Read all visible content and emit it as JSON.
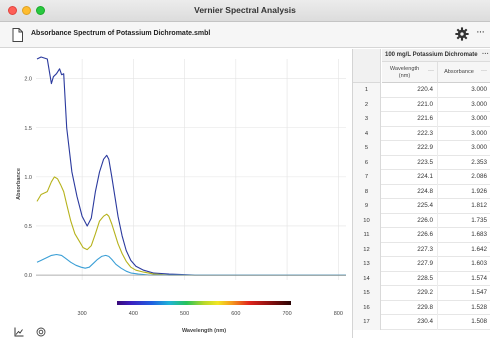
{
  "window": {
    "title": "Vernier Spectral Analysis"
  },
  "toolbar": {
    "doc_title": "Absorbance Spectrum of Potassium Dichromate.smbl",
    "more_label": "···"
  },
  "colors": {
    "series_blue": "#2b3a9e",
    "series_olive": "#b6b21c",
    "series_light": "#3b9fd6"
  },
  "graph": {
    "ylabel": "Absorbance",
    "xlabel": "Wavelength (nm)",
    "x_ticks": [
      "300",
      "400",
      "500",
      "600",
      "700",
      "800"
    ],
    "y_ticks": [
      "2.0",
      "1.5",
      "1.0",
      "0.5",
      "0.0"
    ]
  },
  "chart_data": {
    "type": "line",
    "xlabel": "Wavelength (nm)",
    "ylabel": "Absorbance",
    "xlim": [
      210,
      815
    ],
    "ylim": [
      -0.05,
      2.2
    ],
    "grid": true,
    "series": [
      {
        "color": "#2b3a9e",
        "x": [
          212,
          220,
          232,
          240,
          244,
          250,
          256,
          260,
          264,
          270,
          280,
          290,
          300,
          310,
          318,
          326,
          334,
          342,
          348,
          352,
          358,
          364,
          370,
          378,
          386,
          395,
          405,
          420,
          440,
          470,
          520,
          600,
          700,
          815
        ],
        "y": [
          2.2,
          2.22,
          2.2,
          1.95,
          2.02,
          2.05,
          2.1,
          2.04,
          2.05,
          1.5,
          1.05,
          0.8,
          0.6,
          0.5,
          0.58,
          0.85,
          1.05,
          1.18,
          1.22,
          1.18,
          1.0,
          0.8,
          0.6,
          0.4,
          0.25,
          0.15,
          0.09,
          0.05,
          0.02,
          0.01,
          0.0,
          0.0,
          0.0,
          0.0
        ]
      },
      {
        "color": "#b6b21c",
        "x": [
          212,
          220,
          232,
          240,
          246,
          252,
          258,
          264,
          270,
          278,
          286,
          294,
          302,
          310,
          318,
          326,
          334,
          342,
          348,
          352,
          358,
          364,
          370,
          378,
          386,
          395,
          405,
          420,
          440,
          470,
          520,
          600,
          700,
          815
        ],
        "y": [
          0.75,
          0.82,
          0.85,
          0.95,
          1.0,
          0.98,
          0.92,
          0.85,
          0.72,
          0.55,
          0.42,
          0.35,
          0.28,
          0.26,
          0.3,
          0.42,
          0.55,
          0.6,
          0.62,
          0.6,
          0.52,
          0.42,
          0.32,
          0.22,
          0.14,
          0.08,
          0.05,
          0.03,
          0.01,
          0.0,
          0.0,
          0.0,
          0.0,
          0.0
        ]
      },
      {
        "color": "#3b9fd6",
        "x": [
          212,
          220,
          232,
          240,
          250,
          260,
          268,
          278,
          288,
          298,
          306,
          314,
          322,
          330,
          338,
          346,
          352,
          358,
          366,
          376,
          386,
          396,
          410,
          430,
          460,
          520,
          600,
          700,
          815
        ],
        "y": [
          0.13,
          0.15,
          0.18,
          0.2,
          0.21,
          0.2,
          0.17,
          0.13,
          0.1,
          0.08,
          0.07,
          0.08,
          0.12,
          0.16,
          0.19,
          0.2,
          0.19,
          0.16,
          0.11,
          0.07,
          0.04,
          0.02,
          0.01,
          0.0,
          0.0,
          0.0,
          0.0,
          0.0,
          0.0
        ]
      }
    ]
  },
  "table": {
    "dataset_name": "100 mg/L Potassium Dichromate",
    "dataset_menu": "···",
    "col_wavelength": "Wavelength (nm)",
    "col_absorbance": "Absorbance",
    "col_menu": "···",
    "rows": [
      {
        "n": "1",
        "wl": "220.4",
        "ab": "3.000"
      },
      {
        "n": "2",
        "wl": "221.0",
        "ab": "3.000"
      },
      {
        "n": "3",
        "wl": "221.6",
        "ab": "3.000"
      },
      {
        "n": "4",
        "wl": "222.3",
        "ab": "3.000"
      },
      {
        "n": "5",
        "wl": "222.9",
        "ab": "3.000"
      },
      {
        "n": "6",
        "wl": "223.5",
        "ab": "2.353"
      },
      {
        "n": "7",
        "wl": "224.1",
        "ab": "2.086"
      },
      {
        "n": "8",
        "wl": "224.8",
        "ab": "1.926"
      },
      {
        "n": "9",
        "wl": "225.4",
        "ab": "1.812"
      },
      {
        "n": "10",
        "wl": "226.0",
        "ab": "1.735"
      },
      {
        "n": "11",
        "wl": "226.6",
        "ab": "1.683"
      },
      {
        "n": "12",
        "wl": "227.3",
        "ab": "1.642"
      },
      {
        "n": "13",
        "wl": "227.9",
        "ab": "1.603"
      },
      {
        "n": "14",
        "wl": "228.5",
        "ab": "1.574"
      },
      {
        "n": "15",
        "wl": "229.2",
        "ab": "1.547"
      },
      {
        "n": "16",
        "wl": "229.8",
        "ab": "1.528"
      },
      {
        "n": "17",
        "wl": "230.4",
        "ab": "1.508"
      }
    ]
  }
}
